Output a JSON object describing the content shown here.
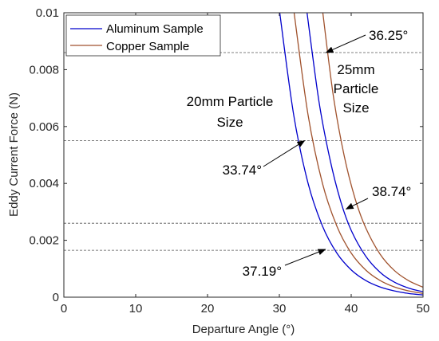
{
  "chart_data": {
    "type": "line",
    "xlabel": "Departure Angle (°)",
    "ylabel": "Eddy Current Force (N)",
    "xlim": [
      0,
      50
    ],
    "ylim": [
      0,
      0.01
    ],
    "x_ticks": [
      "0",
      "10",
      "20",
      "30",
      "40",
      "50"
    ],
    "y_ticks": [
      "0",
      "0.002",
      "0.004",
      "0.006",
      "0.008",
      "0.01"
    ],
    "grid": false,
    "legend_position": "top-left",
    "series": [
      {
        "name": "Aluminum Sample",
        "particle_size": "20mm",
        "color": "#0000cc",
        "x": [
          30,
          32,
          34,
          36,
          38,
          40,
          42,
          44,
          46,
          48,
          50
        ],
        "y": [
          0.0101,
          0.0064,
          0.004,
          0.0025,
          0.00155,
          0.00096,
          0.00059,
          0.00036,
          0.00022,
          0.00013,
          8e-05
        ]
      },
      {
        "name": "Copper Sample",
        "particle_size": "20mm",
        "color": "#a0522d",
        "x": [
          32,
          34,
          36,
          38,
          40,
          42,
          44,
          46,
          48,
          50
        ],
        "y": [
          0.0101,
          0.0064,
          0.004,
          0.0025,
          0.00155,
          0.00096,
          0.00059,
          0.00036,
          0.00022,
          0.00013
        ]
      },
      {
        "name": "Aluminum Sample",
        "particle_size": "25mm",
        "color": "#0000cc",
        "x": [
          33.8,
          35.5,
          37,
          38.5,
          40,
          42,
          44,
          46,
          48,
          50
        ],
        "y": [
          0.0101,
          0.0069,
          0.0049,
          0.0034,
          0.00235,
          0.00145,
          0.00088,
          0.00053,
          0.00032,
          0.00019
        ]
      },
      {
        "name": "Copper Sample",
        "particle_size": "25mm",
        "color": "#a0522d",
        "x": [
          36,
          37.5,
          39,
          40.5,
          42,
          44,
          46,
          48,
          50
        ],
        "y": [
          0.0101,
          0.0071,
          0.005,
          0.0035,
          0.00245,
          0.00152,
          0.00094,
          0.00058,
          0.00035
        ]
      }
    ],
    "reference_lines": [
      0.0086,
      0.0055,
      0.0026,
      0.00165
    ],
    "annotations": [
      {
        "text": "36.25°",
        "target": [
          36.5,
          0.0086
        ]
      },
      {
        "text": "33.74°",
        "target": [
          33.5,
          0.0055
        ]
      },
      {
        "text": "38.74°",
        "target": [
          39.3,
          0.0031
        ]
      },
      {
        "text": "37.19°",
        "target": [
          36.4,
          0.00168
        ]
      }
    ],
    "region_labels": {
      "size_20": [
        "20mm Particle",
        "Size"
      ],
      "size_25": [
        "25mm",
        "Particle",
        "Size"
      ]
    }
  }
}
